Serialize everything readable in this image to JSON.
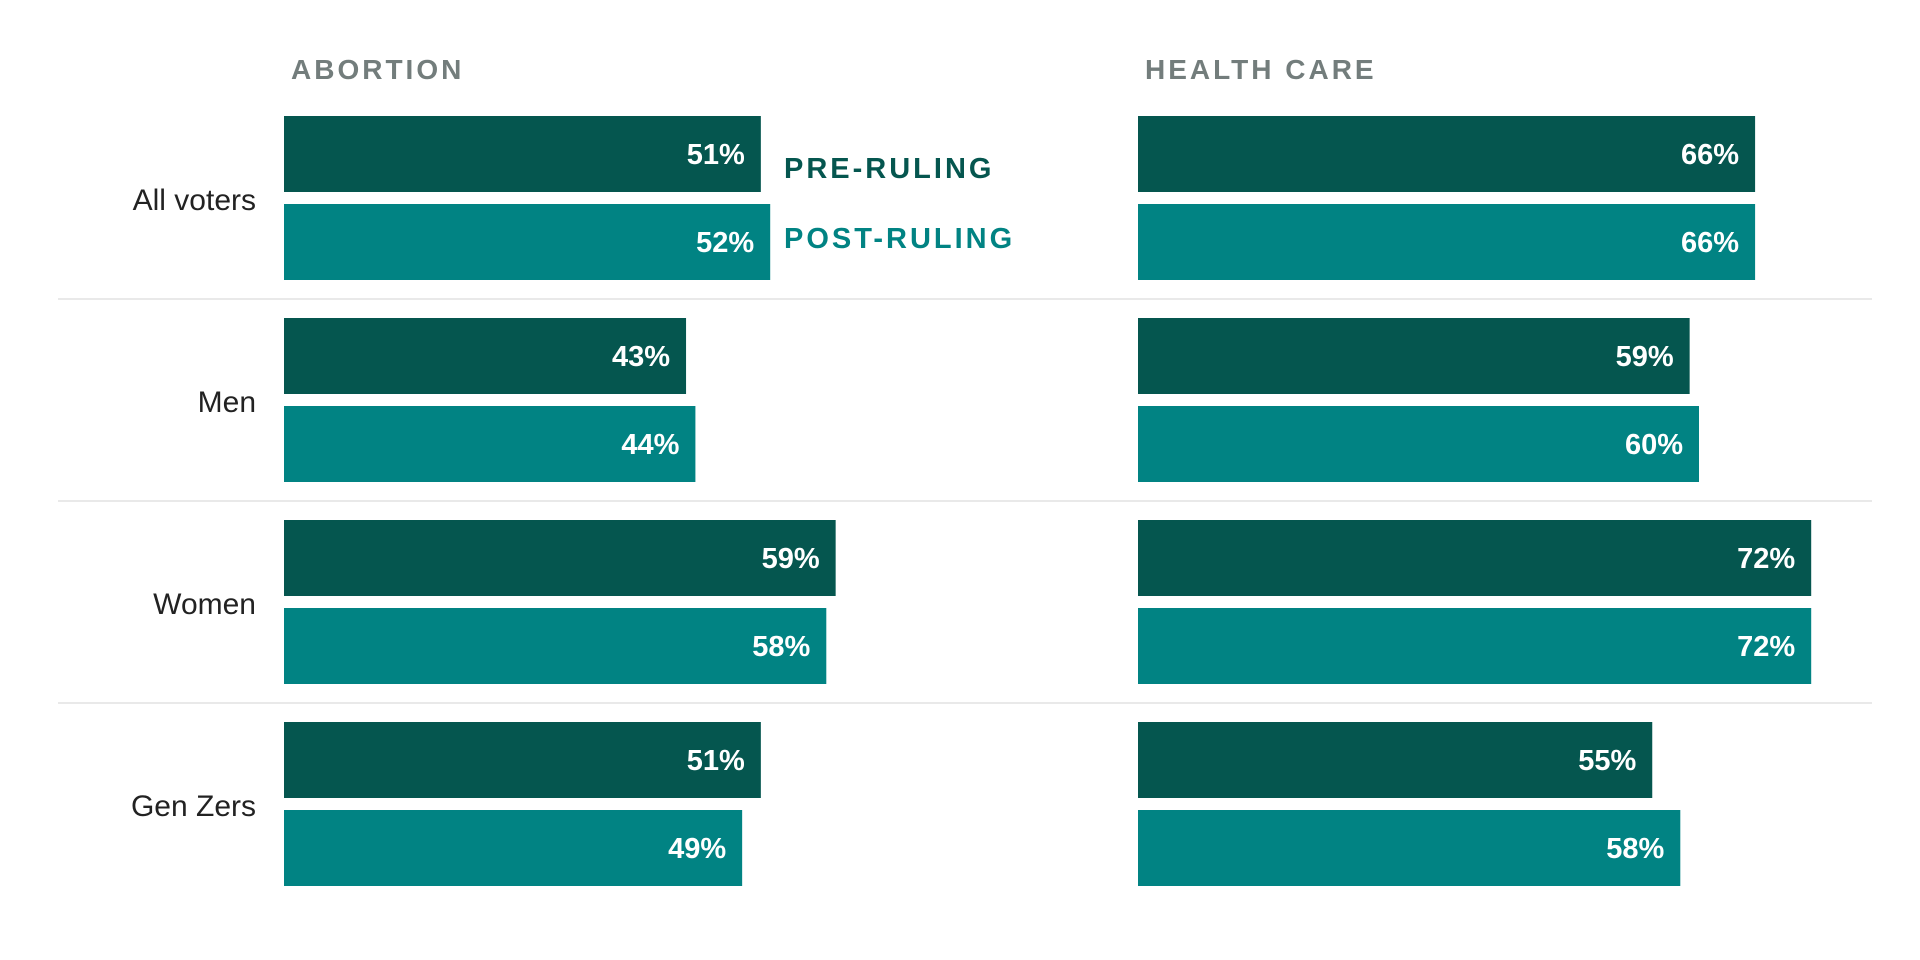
{
  "colors": {
    "pre": "#05564f",
    "post": "#018383",
    "panel_title": "#737d7c",
    "label": "#222222",
    "divider": "#e2e2e2"
  },
  "legend": {
    "pre_label": "PRE-RULING",
    "post_label": "POST-RULING"
  },
  "chart_data": [
    {
      "type": "bar",
      "orientation": "horizontal",
      "title": "ABORTION",
      "categories": [
        "All voters",
        "Men",
        "Women",
        "Gen Zers"
      ],
      "series": [
        {
          "name": "PRE-RULING",
          "values": [
            51,
            43,
            59,
            51
          ]
        },
        {
          "name": "POST-RULING",
          "values": [
            52,
            44,
            58,
            49
          ]
        }
      ],
      "value_labels": {
        "PRE-RULING": [
          "51%",
          "43%",
          "59%",
          "51%"
        ],
        "POST-RULING": [
          "52%",
          "44%",
          "58%",
          "49%"
        ]
      },
      "unit": "%",
      "xlim": [
        0,
        100
      ],
      "legend_placement": "right of first group"
    },
    {
      "type": "bar",
      "orientation": "horizontal",
      "title": "HEALTH CARE",
      "categories": [
        "All voters",
        "Men",
        "Women",
        "Gen Zers"
      ],
      "series": [
        {
          "name": "PRE-RULING",
          "values": [
            66,
            59,
            72,
            55
          ]
        },
        {
          "name": "POST-RULING",
          "values": [
            66,
            60,
            72,
            58
          ]
        }
      ],
      "value_labels": {
        "PRE-RULING": [
          "66%",
          "59%",
          "72%",
          "55%"
        ],
        "POST-RULING": [
          "66%",
          "60%",
          "72%",
          "58%"
        ]
      },
      "unit": "%",
      "xlim": [
        0,
        100
      ]
    }
  ]
}
